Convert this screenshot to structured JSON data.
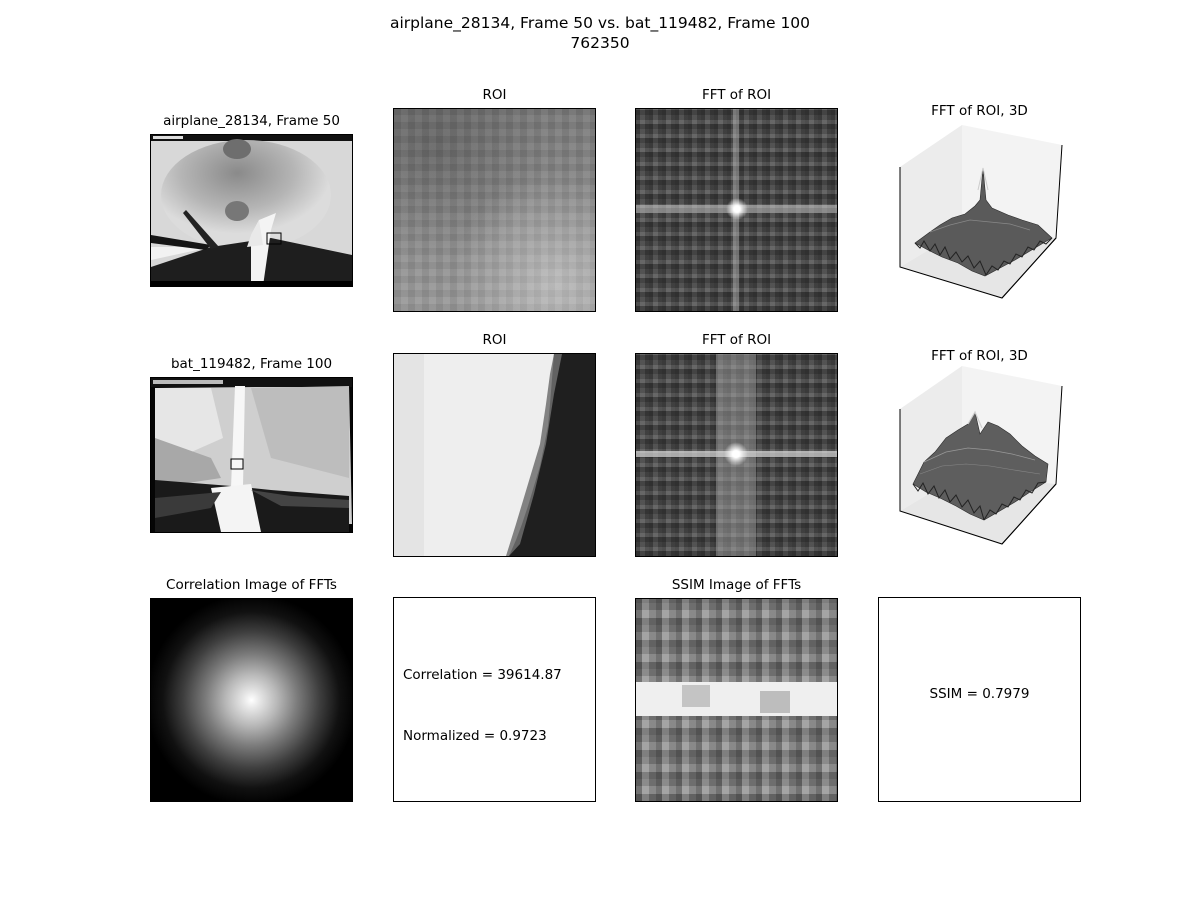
{
  "suptitle": {
    "line1": "airplane_28134, Frame 50 vs. bat_119482, Frame 100",
    "line2": "762350"
  },
  "row1": {
    "image_title": "airplane_28134, Frame 50",
    "roi_title": "ROI",
    "fft_title": "FFT of ROI",
    "fft3d_title": "FFT of ROI, 3D"
  },
  "row2": {
    "image_title": "bat_119482, Frame 100",
    "roi_title": "ROI",
    "fft_title": "FFT of ROI",
    "fft3d_title": "FFT of ROI, 3D"
  },
  "row3": {
    "correlation_image_title": "Correlation Image of FFTs",
    "correlation_text": "Correlation = 39614.87",
    "normalized_text": "Normalized = 0.9723",
    "ssim_image_title": "SSIM Image of FFTs",
    "ssim_text": "SSIM = 0.7979"
  },
  "colors": {
    "background": "#ffffff",
    "axes_edge": "#000000",
    "surface": "#5a5a5a"
  }
}
